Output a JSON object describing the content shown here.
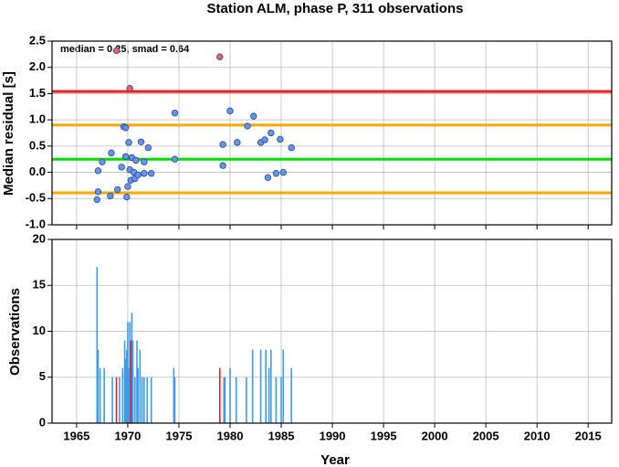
{
  "chart_data": [
    {
      "type": "scatter",
      "title": "Station ALM, phase P, 311 observations",
      "y_label": "Median residual [s]",
      "annotation": "median = 0.25, smad = 0.64",
      "xlim": [
        1962.6,
        2017.3
      ],
      "xticks": [
        1965,
        1970,
        1975,
        1980,
        1985,
        1990,
        1995,
        2000,
        2005,
        2010,
        2015
      ],
      "ylim": [
        -1.0,
        2.5
      ],
      "yticks": [
        {
          "value": -1.0,
          "label": "-1.0"
        },
        -0.5,
        {
          "value": 0.0,
          "label": "0.0"
        },
        0.5,
        {
          "value": 1.0,
          "label": "1.0"
        },
        1.5,
        {
          "value": 2.0,
          "label": "2.0"
        },
        2.5
      ],
      "grid": true,
      "hlines": [
        {
          "value": 1.54,
          "color": "#ff1a1a"
        },
        {
          "value": 0.9,
          "color": "#ffa500"
        },
        {
          "value": 0.25,
          "color": "#00e000"
        },
        {
          "value": -0.39,
          "color": "#ffa500"
        }
      ],
      "series": [
        {
          "color": "#6495ed",
          "x": [
            1967.0,
            1967.1,
            1967.1,
            1967.5,
            1968.3,
            1968.4,
            1969.0,
            1969.4,
            1969.6,
            1969.8,
            1969.8,
            1969.9,
            1970.0,
            1970.1,
            1970.2,
            1970.3,
            1970.4,
            1970.6,
            1970.7,
            1970.8,
            1971.0,
            1971.3,
            1971.6,
            1971.6,
            1972.0,
            1972.3,
            1974.6,
            1974.6,
            1979.3,
            1979.3,
            1980.0,
            1980.7,
            1981.7,
            1982.3,
            1983.0,
            1983.4,
            1983.7,
            1984.0,
            1984.5,
            1984.9,
            1985.2,
            1986.0
          ],
          "values": [
            -0.52,
            -0.37,
            0.03,
            0.2,
            -0.45,
            0.37,
            -0.33,
            0.1,
            0.87,
            0.85,
            0.3,
            -0.47,
            -0.27,
            0.57,
            0.05,
            -0.15,
            0.28,
            0.0,
            -0.12,
            0.23,
            -0.05,
            0.58,
            0.2,
            -0.02,
            0.47,
            -0.02,
            1.13,
            0.25,
            0.53,
            0.13,
            1.17,
            0.57,
            0.88,
            1.07,
            0.57,
            0.62,
            -0.1,
            0.75,
            -0.02,
            0.63,
            0.0,
            0.47
          ]
        },
        {
          "color": "#f06060",
          "x": [
            1968.9,
            1970.2,
            1979.0
          ],
          "values": [
            2.32,
            1.6,
            2.2
          ]
        }
      ]
    },
    {
      "type": "bar",
      "x_label": "Year",
      "y_label": "Observations",
      "xlim": [
        1962.6,
        2017.3
      ],
      "xticks": [
        1965,
        1970,
        1975,
        1980,
        1985,
        1990,
        1995,
        2000,
        2005,
        2010,
        2015
      ],
      "ylim": [
        0,
        20
      ],
      "yticks": [
        0,
        5,
        10,
        15,
        20
      ],
      "grid": true,
      "series": [
        {
          "color": "#3d9be9",
          "x": [
            1967.0,
            1967.1,
            1967.3,
            1967.7,
            1968.5,
            1969.2,
            1969.5,
            1969.7,
            1969.8,
            1969.9,
            1970.0,
            1970.1,
            1970.2,
            1970.4,
            1970.5,
            1970.7,
            1970.9,
            1971.0,
            1971.2,
            1971.4,
            1971.6,
            1971.9,
            1972.3,
            1974.5,
            1974.6,
            1979.4,
            1979.5,
            1980.0,
            1980.6,
            1981.6,
            1982.2,
            1983.0,
            1983.5,
            1983.8,
            1984.0,
            1984.5,
            1985.0,
            1985.2,
            1986.0
          ],
          "values": [
            17,
            8,
            6,
            6,
            5,
            5,
            6,
            9,
            7,
            8,
            11,
            6,
            11,
            12,
            9,
            5,
            9,
            6,
            8,
            5,
            5,
            5,
            5,
            6,
            5,
            5,
            5,
            6,
            5,
            5,
            8,
            8,
            8,
            6,
            8,
            5,
            5,
            8,
            6
          ]
        },
        {
          "color": "#e02020",
          "x": [
            1968.9,
            1970.3,
            1979.0
          ],
          "values": [
            5,
            9,
            6
          ]
        }
      ]
    }
  ]
}
